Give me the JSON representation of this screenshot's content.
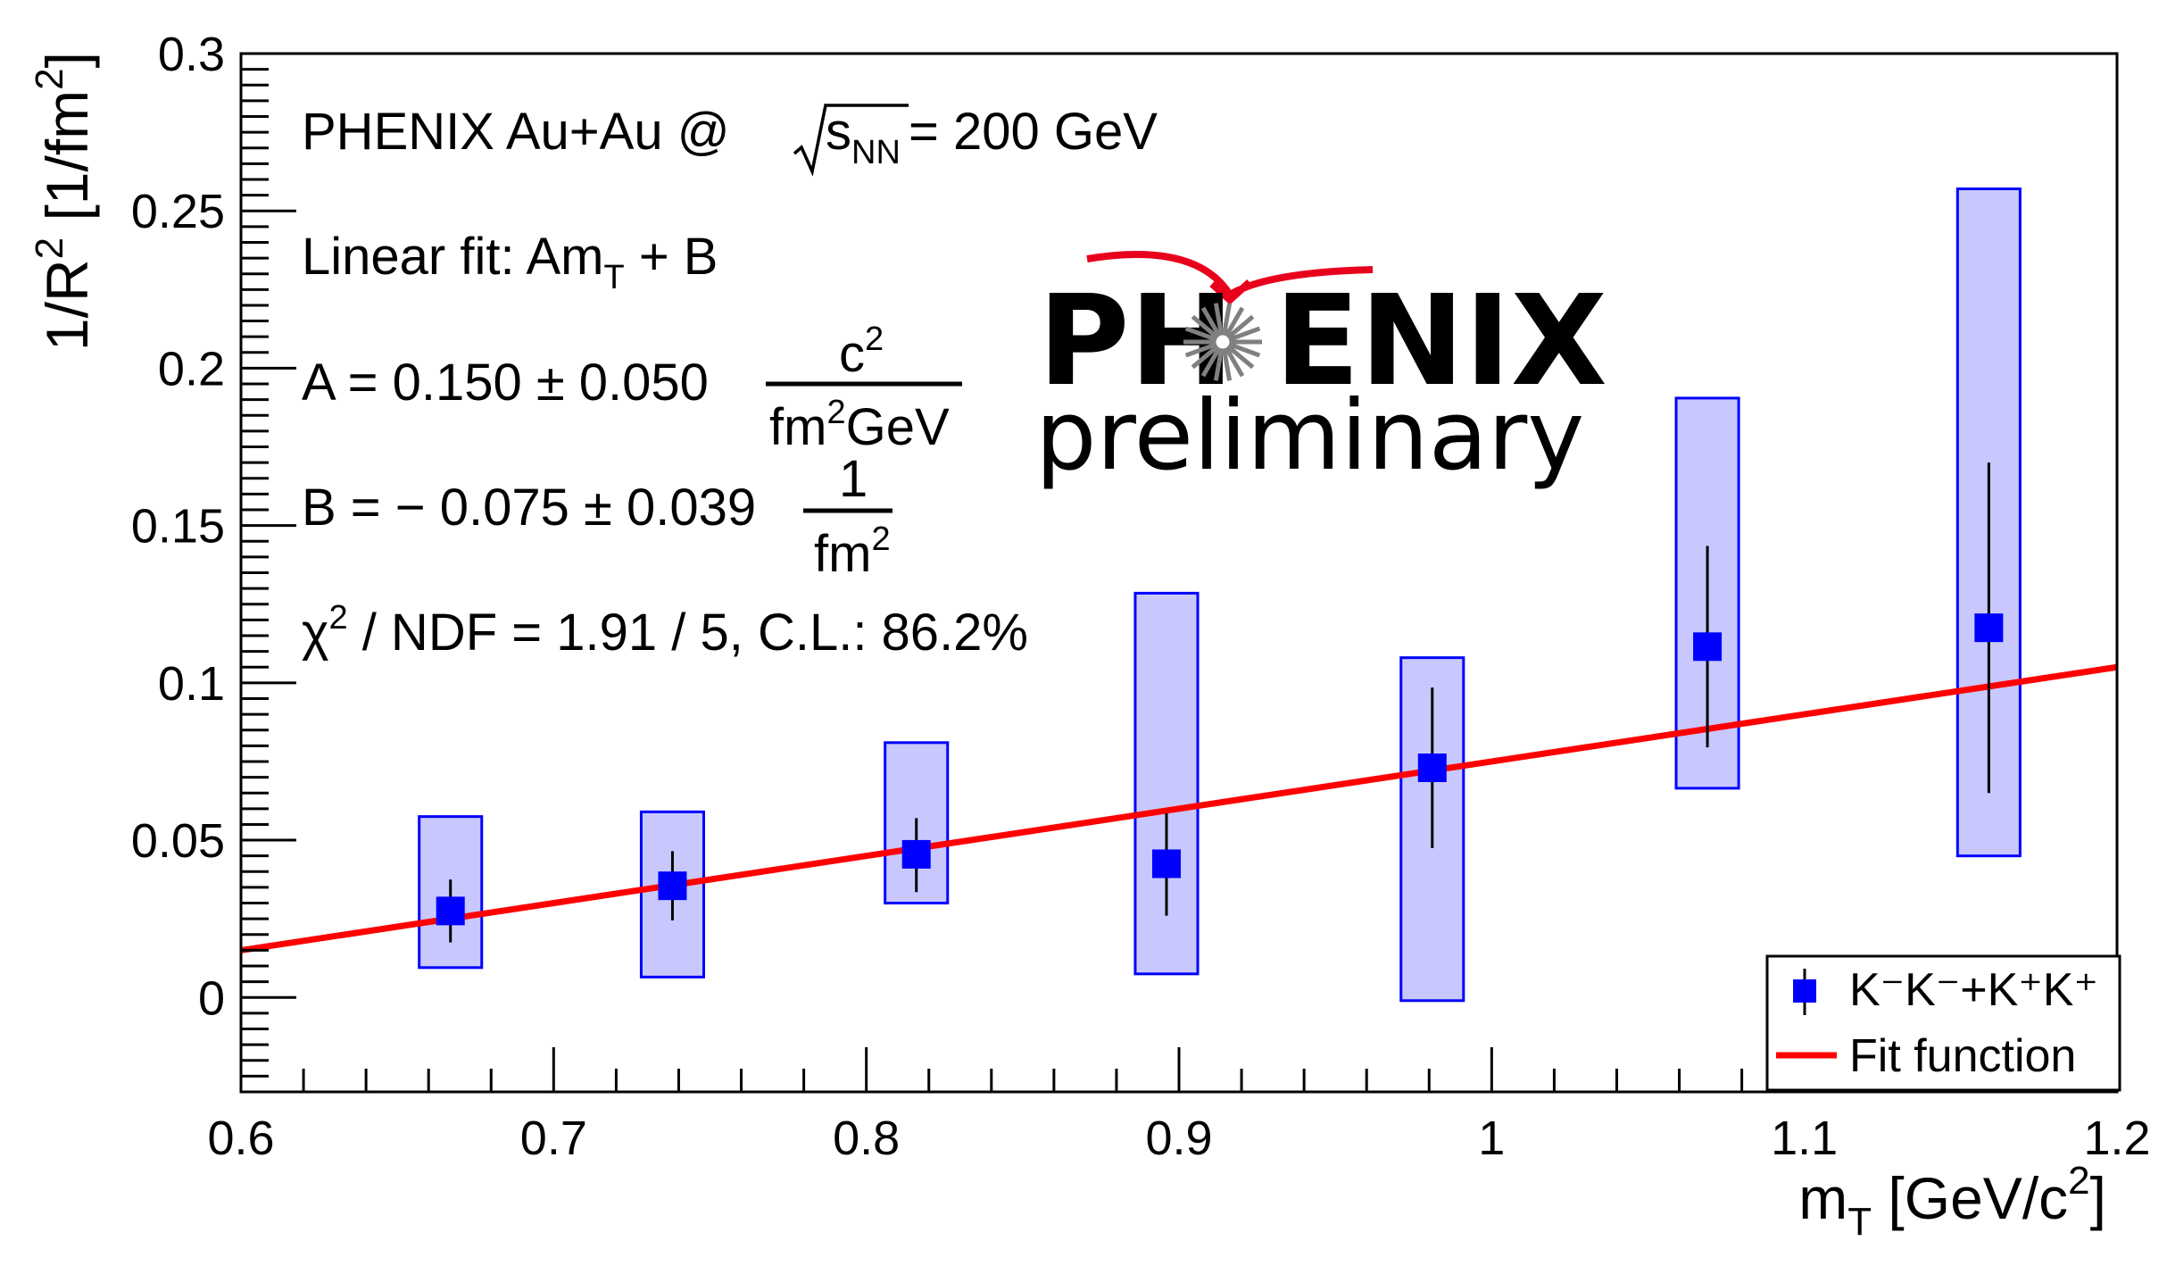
{
  "chart_data": {
    "type": "scatter",
    "xlabel": "m",
    "xlabel_sub": "T",
    "xlabel_rest": " [GeV/c",
    "xlabel_sup": "2",
    "xlabel_end": "]",
    "ylabel": "1/R",
    "ylabel_sup": "2",
    "ylabel_rest": " [1/fm",
    "ylabel_sup2": "2",
    "ylabel_end": "]",
    "xlim": [
      0.6,
      1.2
    ],
    "ylim": [
      -0.03,
      0.3
    ],
    "x_ticks": [
      0.6,
      0.7,
      0.8,
      0.9,
      1.0,
      1.1,
      1.2
    ],
    "x_tick_labels": [
      "0.6",
      "0.7",
      "0.8",
      "0.9",
      "1",
      "1.1",
      "1.2"
    ],
    "y_ticks": [
      0,
      0.05,
      0.1,
      0.15,
      0.2,
      0.25,
      0.3
    ],
    "y_tick_labels": [
      "0",
      "0.05",
      "0.1",
      "0.15",
      "0.2",
      "0.25",
      "0.3"
    ],
    "grid": false,
    "legend_position": "bottom-right",
    "series": [
      {
        "name": "K⁻K⁻+K⁺K⁺",
        "color": "#0000ff",
        "points": [
          {
            "x": 0.667,
            "y": 0.0275,
            "stat_low": 0.0175,
            "stat_high": 0.0375,
            "sys_low": 0.0095,
            "sys_high": 0.0575,
            "sys_x": [
              0.657,
              0.677
            ]
          },
          {
            "x": 0.738,
            "y": 0.0355,
            "stat_low": 0.0245,
            "stat_high": 0.0465,
            "sys_low": 0.0065,
            "sys_high": 0.059,
            "sys_x": [
              0.728,
              0.748
            ]
          },
          {
            "x": 0.816,
            "y": 0.0455,
            "stat_low": 0.0335,
            "stat_high": 0.057,
            "sys_low": 0.03,
            "sys_high": 0.081,
            "sys_x": [
              0.806,
              0.826
            ]
          },
          {
            "x": 0.896,
            "y": 0.0425,
            "stat_low": 0.026,
            "stat_high": 0.0585,
            "sys_low": 0.0075,
            "sys_high": 0.1285,
            "sys_x": [
              0.886,
              0.906
            ]
          },
          {
            "x": 0.981,
            "y": 0.073,
            "stat_low": 0.0475,
            "stat_high": 0.0985,
            "sys_low": -0.001,
            "sys_high": 0.108,
            "sys_x": [
              0.971,
              0.991
            ]
          },
          {
            "x": 1.069,
            "y": 0.1115,
            "stat_low": 0.0795,
            "stat_high": 0.1435,
            "sys_low": 0.0665,
            "sys_high": 0.1905,
            "sys_x": [
              1.059,
              1.079
            ]
          },
          {
            "x": 1.159,
            "y": 0.1175,
            "stat_low": 0.065,
            "stat_high": 0.17,
            "sys_low": 0.045,
            "sys_high": 0.257,
            "sys_x": [
              1.149,
              1.169
            ]
          }
        ]
      },
      {
        "name": "Fit function",
        "color": "#ff0000",
        "line": {
          "slope": 0.15,
          "intercept": -0.075,
          "x_from": 0.6,
          "x_to": 1.2
        }
      }
    ],
    "annotations": {
      "line1_main": "PHENIX Au+Au @ ",
      "line1_sqrt_s": "s",
      "line1_sqrt_sub": "NN",
      "line1_end": " = 200 GeV",
      "line2_main": "Linear fit: Am",
      "line2_sub": "T",
      "line2_end": " + B",
      "line3_main": "A = 0.150 ± 0.050",
      "line3_num": "c",
      "line3_num_sup": "2",
      "line3_den": "fm",
      "line3_den_sup": "2",
      "line3_den_end": "GeV",
      "line4_main": "B = − 0.075 ± 0.039",
      "line4_num": "1",
      "line4_den": "fm",
      "line4_den_sup": "2",
      "line5_chi": "χ",
      "line5_sup": "2",
      "line5_end": " / NDF = 1.91 / 5, C.L.: 86.2%"
    },
    "logo": {
      "text_left": "PH",
      "text_right": "ENIX",
      "text_bottom": "preliminary",
      "arc_color": "#e8001c",
      "burst_color": "#808080"
    }
  }
}
